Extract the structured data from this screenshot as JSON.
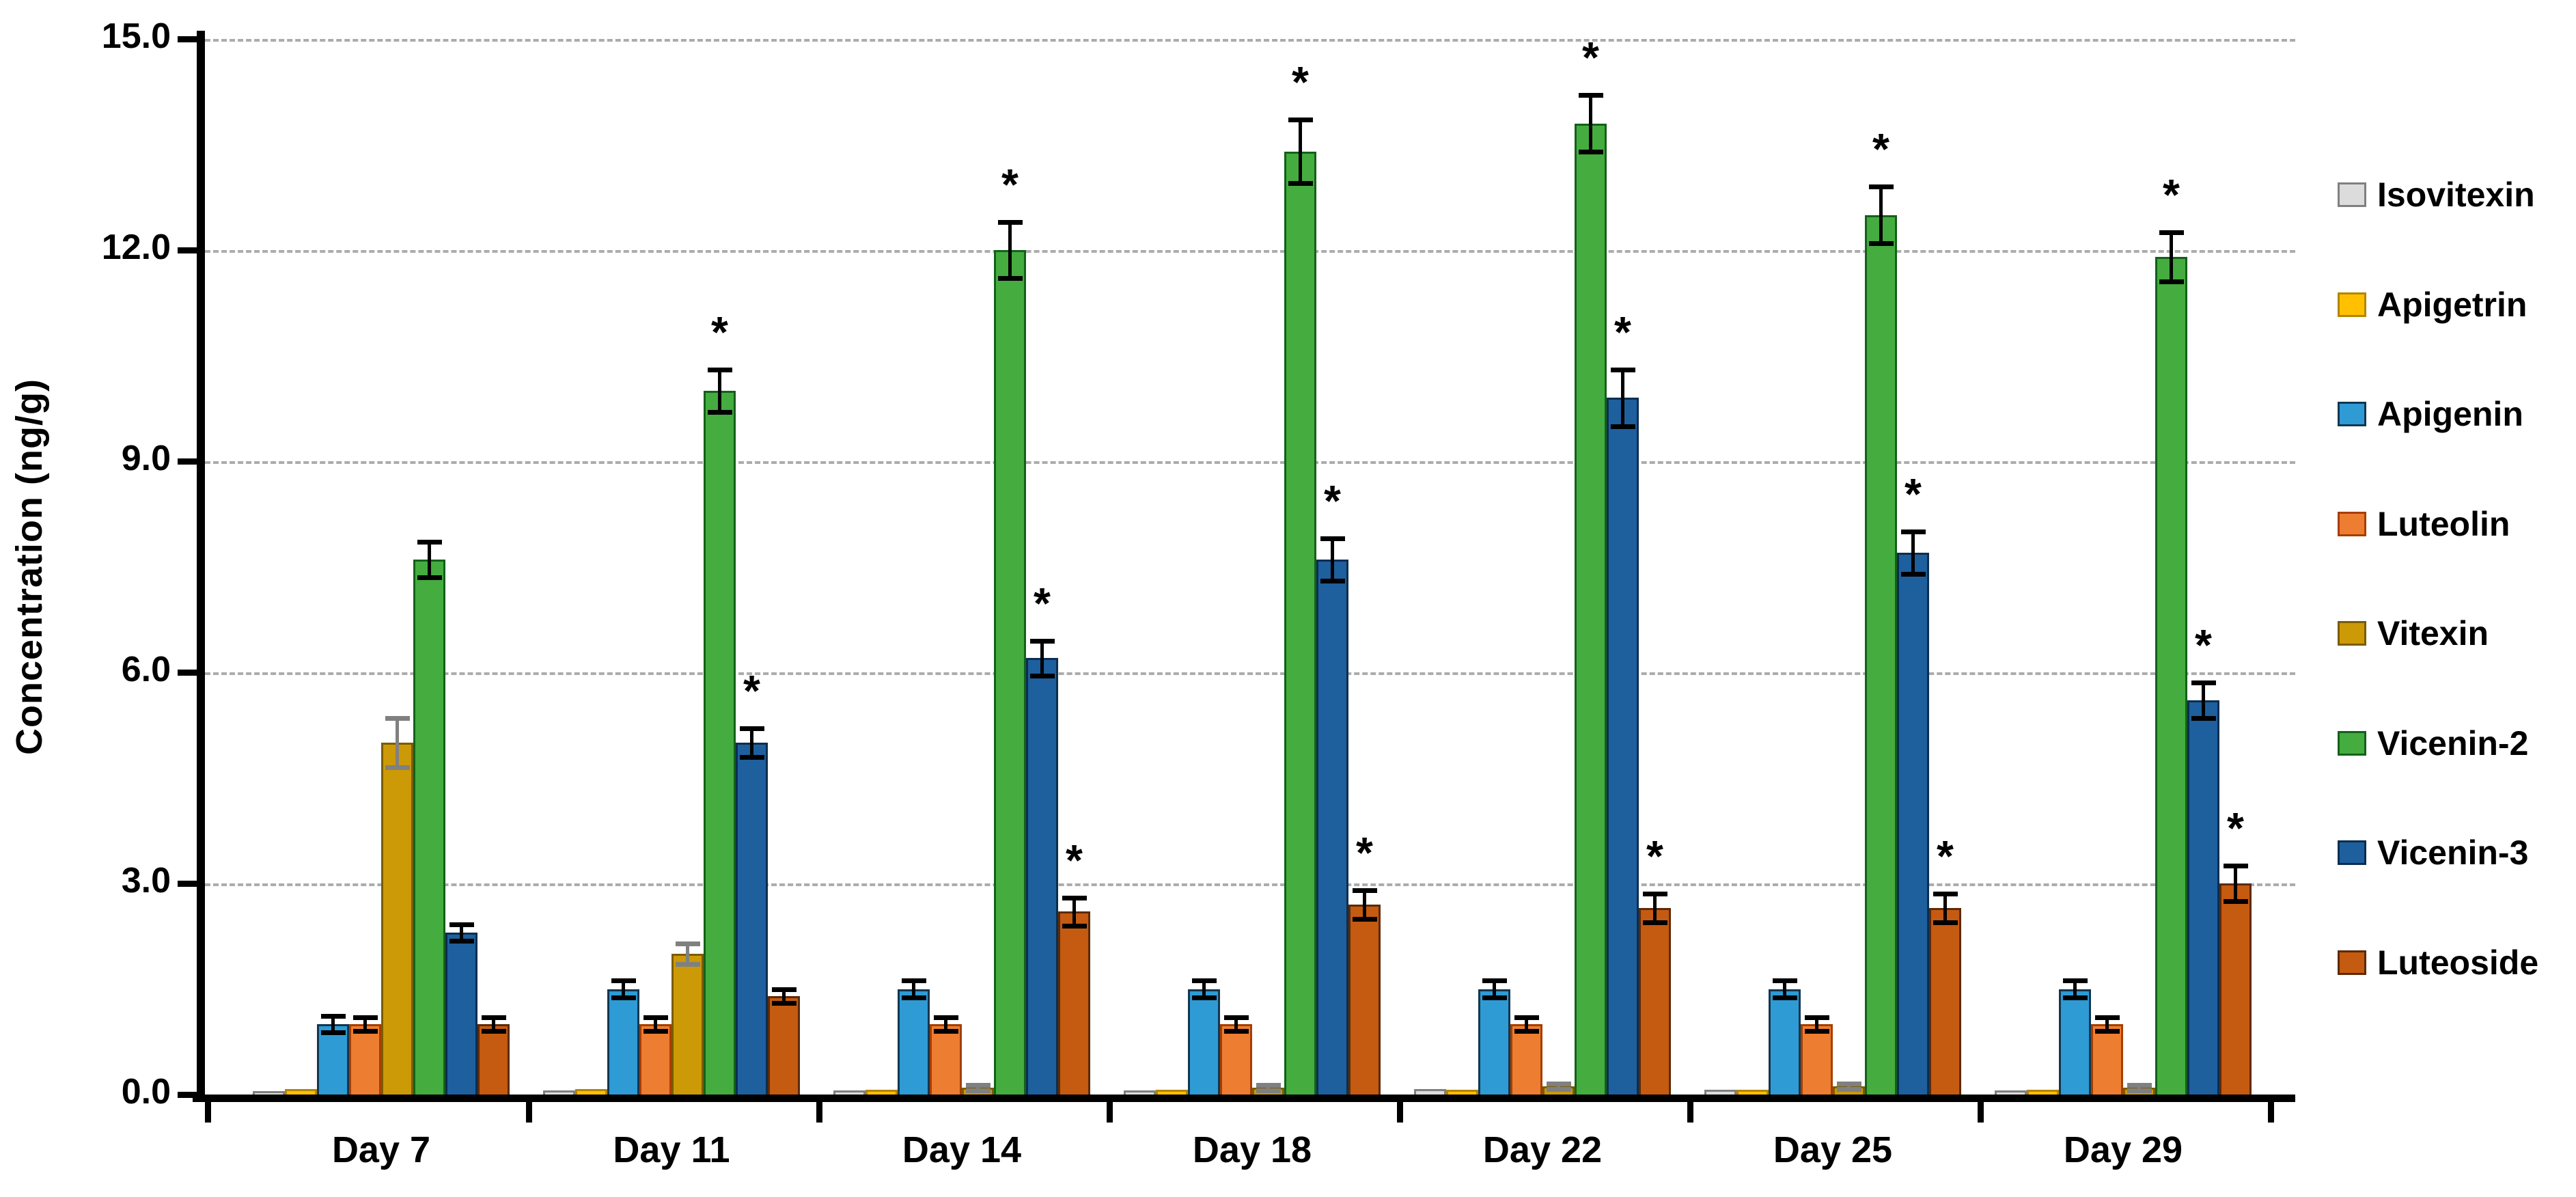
{
  "chart_data": {
    "type": "bar",
    "title": "",
    "xlabel": "",
    "ylabel": "Concentration (ng/g)",
    "ylim": [
      0,
      15
    ],
    "ytick_labels": [
      "0.0",
      "3.0",
      "6.0",
      "9.0",
      "12.0",
      "15.0"
    ],
    "ytick_values": [
      0,
      3,
      6,
      9,
      12,
      15
    ],
    "grid": true,
    "legend_position": "right",
    "significance_marker": "*",
    "categories": [
      "Day 7",
      "Day 11",
      "Day 14",
      "Day 18",
      "Day 22",
      "Day 25",
      "Day 29"
    ],
    "series": [
      {
        "name": "Isovitexin",
        "color": "#DCDCDC",
        "border": "#808080",
        "pattern": "dots",
        "error_color": "#808080",
        "values": [
          0.05,
          0.06,
          0.06,
          0.06,
          0.08,
          0.07,
          0.06
        ],
        "errors": [
          0,
          0,
          0,
          0,
          0,
          0,
          0
        ],
        "sig": [
          false,
          false,
          false,
          false,
          false,
          false,
          false
        ]
      },
      {
        "name": "Apigetrin",
        "color": "#FFC000",
        "border": "#B38600",
        "pattern": "",
        "error_color": "#000000",
        "values": [
          0.08,
          0.08,
          0.07,
          0.07,
          0.07,
          0.07,
          0.07
        ],
        "errors": [
          0,
          0,
          0,
          0,
          0,
          0,
          0
        ],
        "sig": [
          false,
          false,
          false,
          false,
          false,
          false,
          false
        ]
      },
      {
        "name": "Apigenin",
        "color": "#2E9BD5",
        "border": "#13364F",
        "pattern": "",
        "error_color": "#000000",
        "values": [
          1.0,
          1.5,
          1.5,
          1.5,
          1.5,
          1.5,
          1.5
        ],
        "errors": [
          0.12,
          0.12,
          0.12,
          0.12,
          0.12,
          0.12,
          0.12
        ],
        "sig": [
          false,
          false,
          false,
          false,
          false,
          false,
          false
        ]
      },
      {
        "name": "Luteolin",
        "color": "#ED7D31",
        "border": "#A63E00",
        "pattern": "",
        "error_color": "#000000",
        "values": [
          1.0,
          1.0,
          1.0,
          1.0,
          1.0,
          1.0,
          1.0
        ],
        "errors": [
          0.1,
          0.1,
          0.1,
          0.1,
          0.1,
          0.1,
          0.1
        ],
        "sig": [
          false,
          false,
          false,
          false,
          false,
          false,
          false
        ]
      },
      {
        "name": "Vitexin",
        "color": "#CC9A06",
        "border": "#7A5C00",
        "pattern": "",
        "error_color": "#808080",
        "values": [
          5.0,
          2.0,
          0.1,
          0.1,
          0.12,
          0.12,
          0.1
        ],
        "errors": [
          0.35,
          0.15,
          0.04,
          0.04,
          0.04,
          0.04,
          0.04
        ],
        "sig": [
          false,
          false,
          false,
          false,
          false,
          false,
          false
        ]
      },
      {
        "name": "Vicenin-2",
        "color": "#45AC3F",
        "border": "#13611A",
        "pattern": "",
        "error_color": "#000000",
        "values": [
          7.6,
          10.0,
          12.0,
          13.4,
          13.8,
          12.5,
          11.9
        ],
        "errors": [
          0.25,
          0.3,
          0.4,
          0.45,
          0.4,
          0.4,
          0.35
        ],
        "sig": [
          false,
          true,
          true,
          true,
          true,
          true,
          true
        ]
      },
      {
        "name": "Vicenin-3",
        "color": "#1E5F9E",
        "border": "#0B2E4F",
        "pattern": "",
        "error_color": "#000000",
        "values": [
          2.3,
          5.0,
          6.2,
          7.6,
          9.9,
          7.7,
          5.6
        ],
        "errors": [
          0.12,
          0.2,
          0.25,
          0.3,
          0.4,
          0.3,
          0.25
        ],
        "sig": [
          false,
          true,
          true,
          true,
          true,
          true,
          true
        ]
      },
      {
        "name": "Luteoside",
        "color": "#C55A11",
        "border": "#5C2A08",
        "pattern": "",
        "error_color": "#000000",
        "values": [
          1.0,
          1.4,
          2.6,
          2.7,
          2.65,
          2.65,
          3.0
        ],
        "errors": [
          0.1,
          0.1,
          0.2,
          0.2,
          0.2,
          0.2,
          0.25
        ],
        "sig": [
          false,
          false,
          true,
          true,
          true,
          true,
          true
        ]
      }
    ]
  }
}
